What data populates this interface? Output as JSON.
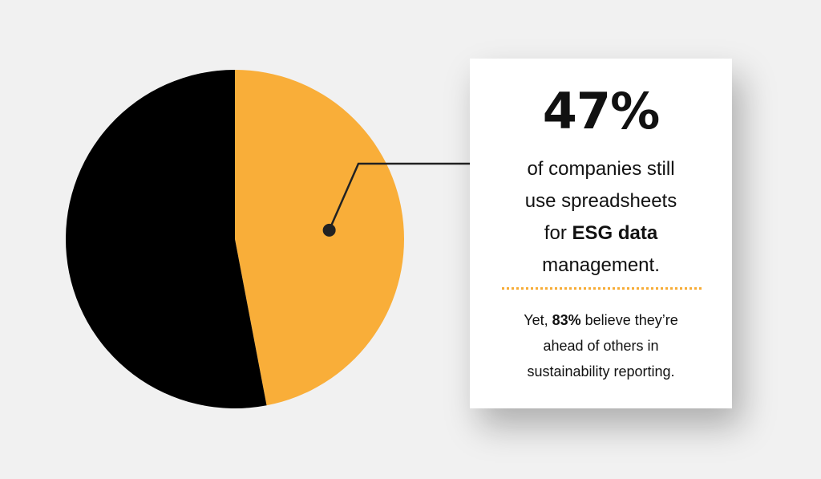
{
  "chart_data": {
    "type": "pie",
    "slices": [
      {
        "label": "",
        "value": 47,
        "color": "#f9ae39"
      },
      {
        "label": "",
        "value": 53,
        "color": "#000000"
      }
    ],
    "start_angle_deg": 0,
    "highlight_slice": 0
  },
  "callout": {
    "stat": "47%",
    "line1": "of companies still",
    "line2": "use spreadsheets",
    "line3_pre": "for ",
    "line3_bold": "ESG data",
    "line4": "management.",
    "sub_pre": "Yet, ",
    "sub_bold": "83%",
    "sub_post1": " believe they’re",
    "sub_line2": "ahead of others in",
    "sub_line3": "sustainability reporting."
  },
  "colors": {
    "accent": "#f9ae39",
    "divider": "#f7ac36",
    "background": "#f1f1f1"
  }
}
